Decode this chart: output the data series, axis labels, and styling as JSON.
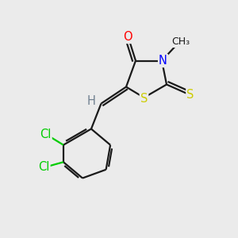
{
  "background_color": "#ebebeb",
  "bond_color": "#1a1a1a",
  "atom_colors": {
    "O": "#ff0000",
    "N": "#0000ff",
    "S": "#cccc00",
    "Cl": "#00cc00",
    "H": "#708090",
    "C": "#1a1a1a"
  },
  "figsize": [
    3.0,
    3.0
  ],
  "dpi": 100,
  "lw": 1.6,
  "fs": 10.5
}
